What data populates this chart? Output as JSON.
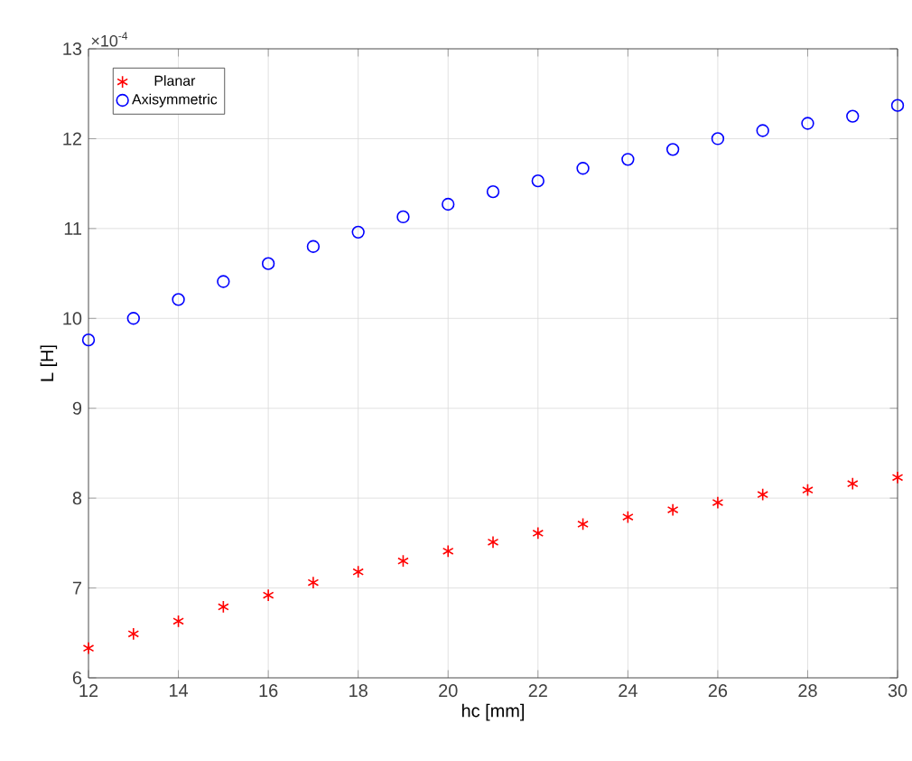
{
  "chart_data": {
    "type": "scatter",
    "xlabel": "hc [mm]",
    "ylabel": "L [H]",
    "annotations": [
      "×10$^{-4}$"
    ],
    "x": [
      12,
      13,
      14,
      15,
      16,
      17,
      18,
      19,
      20,
      21,
      22,
      23,
      24,
      25,
      26,
      27,
      28,
      29,
      30
    ],
    "series": [
      {
        "name": "Planar",
        "color": "#ff0000",
        "marker": "cross",
        "values": [
          6.33,
          6.49,
          6.63,
          6.79,
          6.92,
          7.06,
          7.18,
          7.3,
          7.41,
          7.51,
          7.61,
          7.71,
          7.79,
          7.87,
          7.95,
          8.04,
          8.09,
          8.16,
          8.23
        ]
      },
      {
        "name": "Axisymmetric",
        "color": "#0000ff",
        "marker": "circle",
        "values": [
          9.76,
          10.0,
          10.21,
          10.41,
          10.61,
          10.8,
          10.96,
          11.13,
          11.27,
          11.41,
          11.53,
          11.67,
          11.77,
          11.88,
          12.0,
          12.09,
          12.17,
          12.25,
          12.37
        ]
      }
    ],
    "xlim": [
      12,
      30
    ],
    "xticks": [
      12,
      14,
      16,
      18,
      20,
      22,
      24,
      26,
      28,
      30
    ],
    "ylim": [
      6,
      13
    ],
    "yticks": [
      6,
      7,
      8,
      9,
      10,
      11,
      12,
      13
    ],
    "grid": true,
    "legend": "top left"
  }
}
